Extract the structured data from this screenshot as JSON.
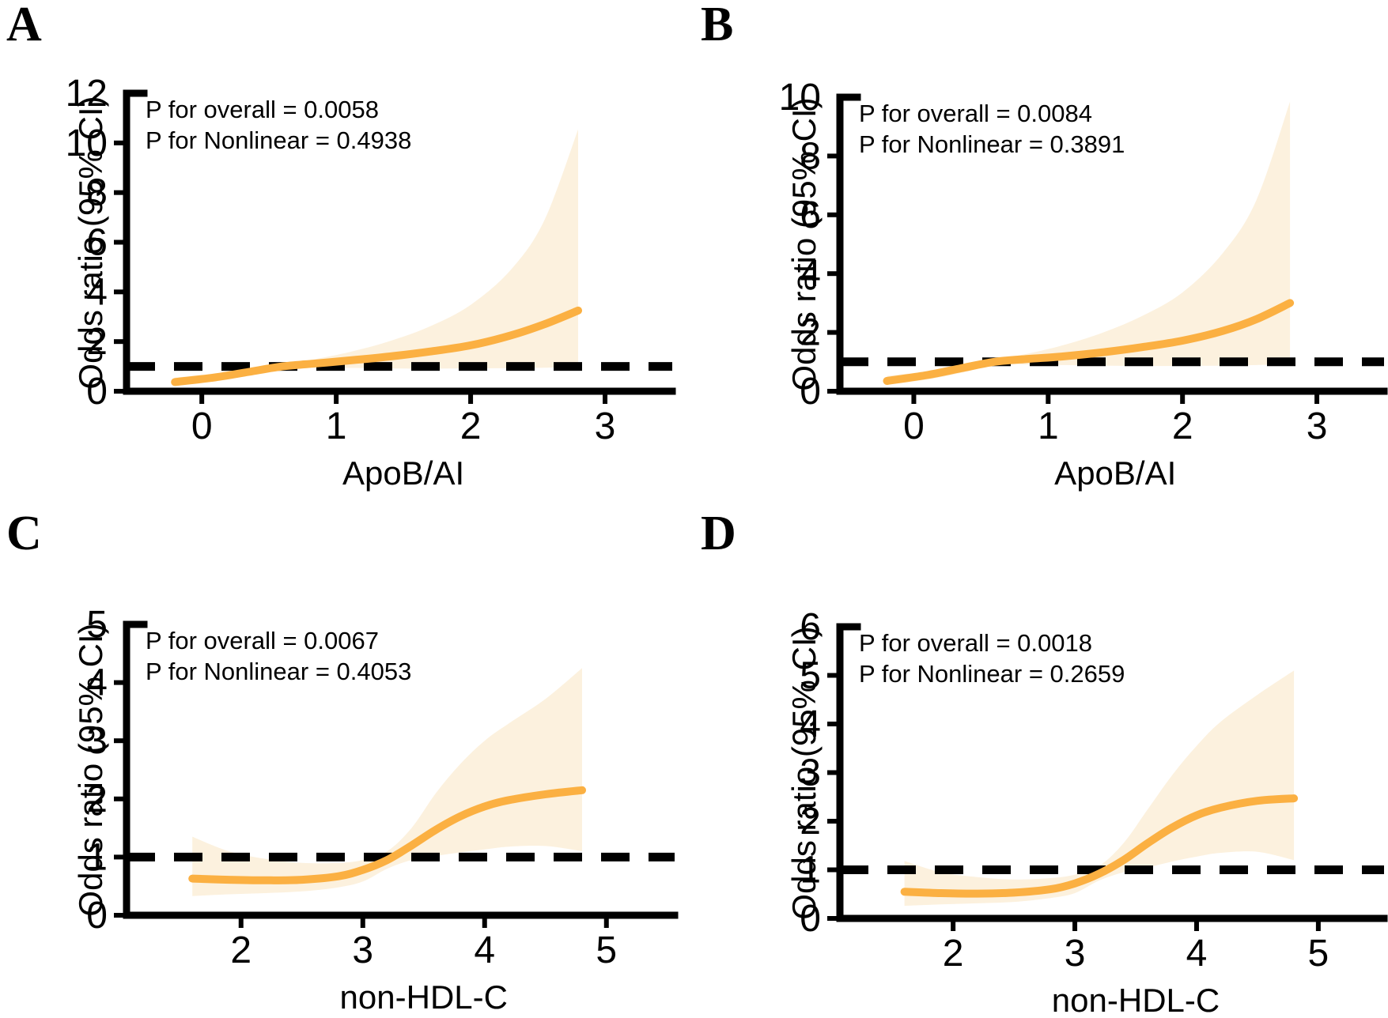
{
  "figure": {
    "background": "#FFFFFF",
    "text_color": "#000000"
  },
  "chart_data": [
    {
      "panel": "A",
      "type": "line",
      "xlabel": "ApoB/AI",
      "ylabel": "Odds ratio (95% CI)",
      "p_overall": "P for overall = 0.0058",
      "p_nonlinear": "P for Nonlinear = 0.4938",
      "xlim": [
        -0.56,
        3.5
      ],
      "ylim": [
        0,
        12
      ],
      "xticks": [
        0,
        1,
        2,
        3
      ],
      "yticks": [
        0,
        2,
        4,
        6,
        8,
        10,
        12
      ],
      "reference_line_y": 1,
      "x": [
        -0.2,
        0.1,
        0.35,
        0.6,
        0.85,
        1.1,
        1.4,
        1.7,
        2.0,
        2.3,
        2.55,
        2.8
      ],
      "series": [
        {
          "name": "odds-ratio",
          "values": [
            0.37,
            0.56,
            0.78,
            1.0,
            1.12,
            1.24,
            1.4,
            1.6,
            1.85,
            2.25,
            2.7,
            3.25
          ]
        },
        {
          "name": "ci-lower",
          "values": [
            0.26,
            0.44,
            0.65,
            0.93,
            0.96,
            0.94,
            0.92,
            0.91,
            0.92,
            0.93,
            0.95,
            0.98
          ]
        },
        {
          "name": "ci-upper",
          "values": [
            0.55,
            0.7,
            0.9,
            1.08,
            1.3,
            1.58,
            2.02,
            2.62,
            3.48,
            4.9,
            6.9,
            10.55
          ]
        }
      ],
      "colors": {
        "line": "#FBB042",
        "band": "#FCF1DE",
        "reference": "#000000",
        "axis": "#000000"
      }
    },
    {
      "panel": "B",
      "type": "line",
      "xlabel": "ApoB/AI",
      "ylabel": "Odds ratio (95% CI)",
      "p_overall": "P for overall = 0.0084",
      "p_nonlinear": "P for Nonlinear = 0.3891",
      "xlim": [
        -0.55,
        3.5
      ],
      "ylim": [
        0,
        10
      ],
      "xticks": [
        0,
        1,
        2,
        3
      ],
      "yticks": [
        0,
        2,
        4,
        6,
        8,
        10
      ],
      "reference_line_y": 1,
      "x": [
        -0.2,
        0.1,
        0.35,
        0.6,
        0.85,
        1.1,
        1.4,
        1.7,
        2.0,
        2.3,
        2.55,
        2.8
      ],
      "series": [
        {
          "name": "odds-ratio",
          "values": [
            0.35,
            0.55,
            0.78,
            1.0,
            1.1,
            1.18,
            1.32,
            1.5,
            1.72,
            2.05,
            2.45,
            3.0
          ]
        },
        {
          "name": "ci-lower",
          "values": [
            0.23,
            0.4,
            0.62,
            0.88,
            0.91,
            0.89,
            0.87,
            0.86,
            0.86,
            0.87,
            0.89,
            0.92
          ]
        },
        {
          "name": "ci-upper",
          "values": [
            0.52,
            0.68,
            0.88,
            1.06,
            1.28,
            1.55,
            1.98,
            2.56,
            3.36,
            4.7,
            6.5,
            9.85
          ]
        }
      ],
      "colors": {
        "line": "#FBB042",
        "band": "#FCF1DE",
        "reference": "#000000",
        "axis": "#000000"
      }
    },
    {
      "panel": "C",
      "type": "line",
      "xlabel": "non-HDL-C",
      "ylabel": "Odds ratio (95% CI)",
      "p_overall": "P for overall = 0.0067",
      "p_nonlinear": "P for Nonlinear = 0.4053",
      "xlim": [
        1.06,
        5.56
      ],
      "ylim": [
        0,
        5
      ],
      "xticks": [
        2,
        3,
        4,
        5
      ],
      "yticks": [
        0,
        1,
        2,
        3,
        4,
        5
      ],
      "reference_line_y": 1,
      "x": [
        1.6,
        1.9,
        2.2,
        2.5,
        2.8,
        3.0,
        3.2,
        3.4,
        3.6,
        3.8,
        4.0,
        4.2,
        4.5,
        4.8
      ],
      "series": [
        {
          "name": "odds-ratio",
          "values": [
            0.63,
            0.61,
            0.6,
            0.61,
            0.67,
            0.78,
            0.95,
            1.2,
            1.47,
            1.7,
            1.87,
            1.98,
            2.08,
            2.15
          ]
        },
        {
          "name": "ci-lower",
          "values": [
            0.33,
            0.36,
            0.38,
            0.41,
            0.48,
            0.58,
            0.8,
            0.95,
            1.02,
            1.08,
            1.13,
            1.18,
            1.19,
            1.1
          ]
        },
        {
          "name": "ci-upper",
          "values": [
            1.35,
            1.1,
            0.97,
            0.9,
            0.9,
            0.95,
            1.1,
            1.5,
            2.1,
            2.6,
            3.0,
            3.3,
            3.72,
            4.25
          ]
        }
      ],
      "colors": {
        "line": "#FBB042",
        "band": "#FCF1DE",
        "reference": "#000000",
        "axis": "#000000"
      }
    },
    {
      "panel": "D",
      "type": "line",
      "xlabel": "non-HDL-C",
      "ylabel": "Odds ratio (95% CI)",
      "p_overall": "P for overall = 0.0018",
      "p_nonlinear": "P for Nonlinear = 0.2659",
      "xlim": [
        1.07,
        5.54
      ],
      "ylim": [
        0,
        6
      ],
      "xticks": [
        2,
        3,
        4,
        5
      ],
      "yticks": [
        0,
        1,
        2,
        3,
        4,
        5,
        6
      ],
      "reference_line_y": 1,
      "x": [
        1.6,
        1.9,
        2.2,
        2.5,
        2.8,
        3.0,
        3.2,
        3.4,
        3.6,
        3.8,
        4.0,
        4.2,
        4.5,
        4.8
      ],
      "series": [
        {
          "name": "odds-ratio",
          "values": [
            0.55,
            0.52,
            0.51,
            0.53,
            0.6,
            0.72,
            0.92,
            1.2,
            1.55,
            1.87,
            2.12,
            2.28,
            2.42,
            2.47
          ]
        },
        {
          "name": "ci-lower",
          "values": [
            0.26,
            0.29,
            0.31,
            0.34,
            0.42,
            0.52,
            0.78,
            0.95,
            1.05,
            1.17,
            1.27,
            1.35,
            1.37,
            1.2
          ]
        },
        {
          "name": "ci-upper",
          "values": [
            1.18,
            0.95,
            0.85,
            0.8,
            0.83,
            0.9,
            1.08,
            1.55,
            2.25,
            2.95,
            3.55,
            4.05,
            4.6,
            5.1
          ]
        }
      ],
      "colors": {
        "line": "#FBB042",
        "band": "#FCF1DE",
        "reference": "#000000",
        "axis": "#000000"
      }
    }
  ]
}
